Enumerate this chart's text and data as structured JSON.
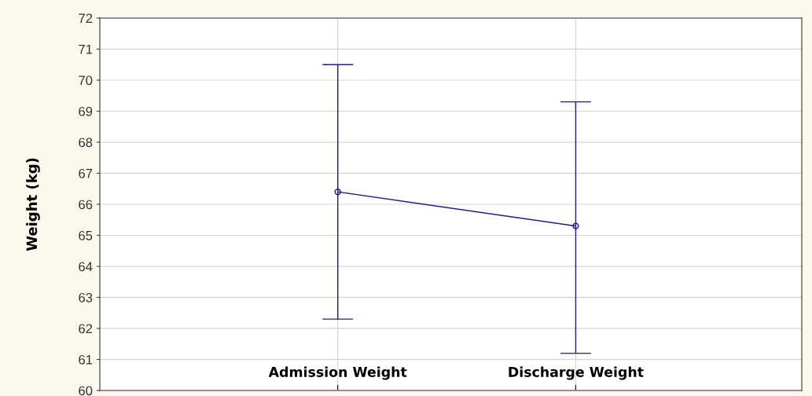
{
  "chart_data": {
    "type": "line",
    "ylabel": "Weight (kg)",
    "categories": [
      "Admission Weight",
      "Discharge Weight"
    ],
    "series": [
      {
        "color": "#1f1f8f",
        "values": [
          66.4,
          65.3
        ],
        "errors": [
          [
            62.3,
            70.5
          ],
          [
            61.2,
            69.3
          ]
        ]
      }
    ],
    "ylim": [
      60,
      72
    ],
    "yticks": [
      60,
      61,
      62,
      63,
      64,
      65,
      66,
      67,
      68,
      69,
      70,
      71,
      72
    ],
    "grid": true,
    "marker": "circle",
    "line_style": "solid"
  }
}
